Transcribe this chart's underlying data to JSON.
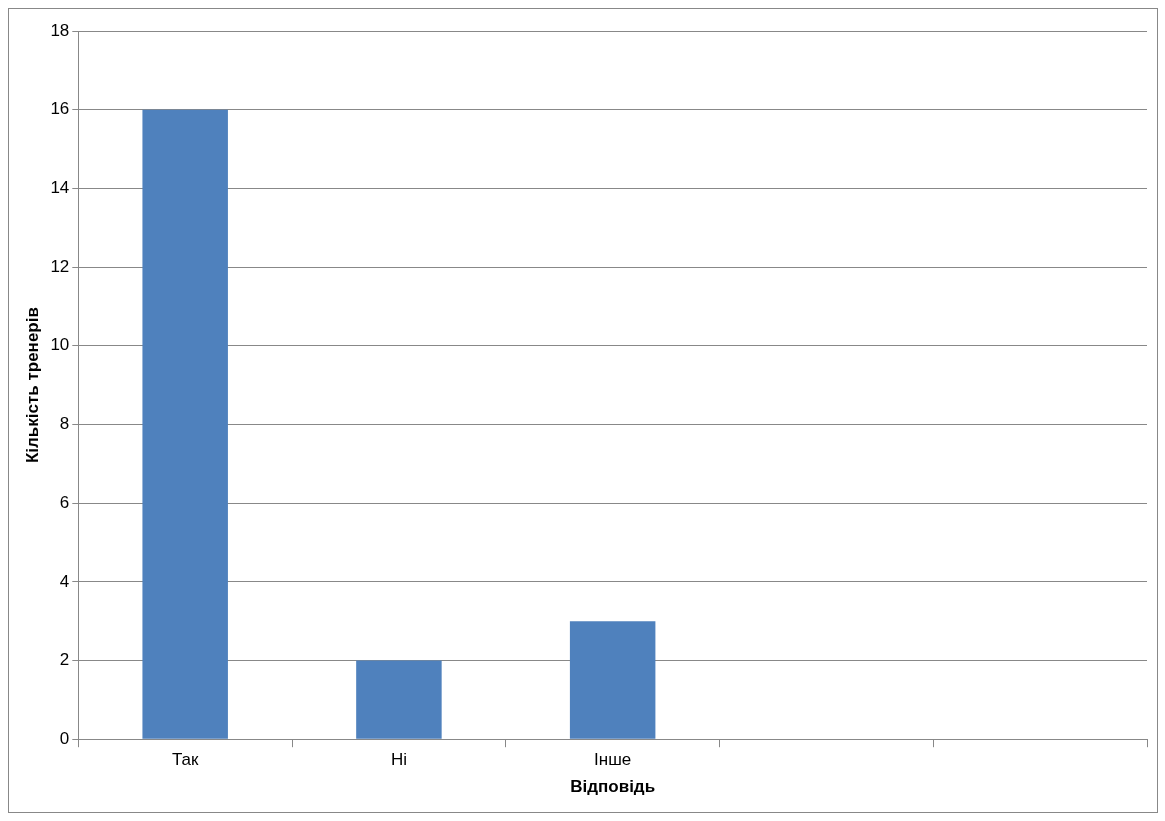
{
  "chart_data": {
    "type": "bar",
    "xlabel": "Відповідь",
    "ylabel": "Кількість тренерів",
    "categories": [
      "Так",
      "Ні",
      "Інше",
      null,
      null
    ],
    "values": [
      16,
      2,
      3,
      null,
      null
    ],
    "color": "#4f81bd",
    "ylim": [
      0,
      18
    ],
    "yticks": [
      0,
      2,
      4,
      6,
      8,
      10,
      12,
      14,
      16,
      18
    ],
    "grid": "y"
  }
}
